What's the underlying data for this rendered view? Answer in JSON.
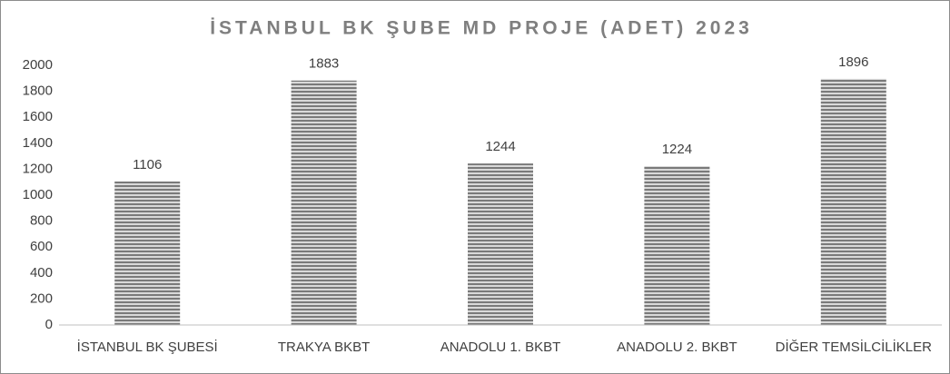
{
  "chart_data": {
    "type": "bar",
    "title": "İSTANBUL BK ŞUBE MD PROJE (ADET) 2023",
    "categories": [
      "İSTANBUL BK ŞUBESİ",
      "TRAKYA BKBT",
      "ANADOLU 1. BKBT",
      "ANADOLU 2. BKBT",
      "DİĞER TEMSİLCİLİKLER"
    ],
    "values": [
      1106,
      1883,
      1244,
      1224,
      1896
    ],
    "color": "#8c8c8c",
    "ylim": [
      0,
      2000
    ],
    "yticks": [
      0,
      200,
      400,
      600,
      800,
      1000,
      1200,
      1400,
      1600,
      1800,
      2000
    ],
    "grid": false
  }
}
